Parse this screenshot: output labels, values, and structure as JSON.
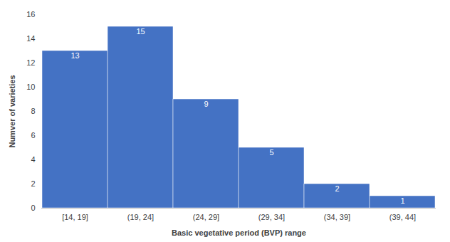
{
  "chart_data": {
    "type": "bar",
    "categories": [
      "[14, 19]",
      "(19, 24]",
      "(24, 29]",
      "(29, 34]",
      "(34, 39]",
      "(39, 44]"
    ],
    "values": [
      13,
      15,
      9,
      5,
      2,
      1
    ],
    "color": "#4472C4",
    "xlabel": "Basic vegetative period (BVP) range",
    "ylabel": "Numver of varieties",
    "ylim": [
      0,
      16
    ],
    "yticks": [
      0,
      2,
      4,
      6,
      8,
      10,
      12,
      14,
      16
    ],
    "grid": false,
    "data_labels": true
  }
}
